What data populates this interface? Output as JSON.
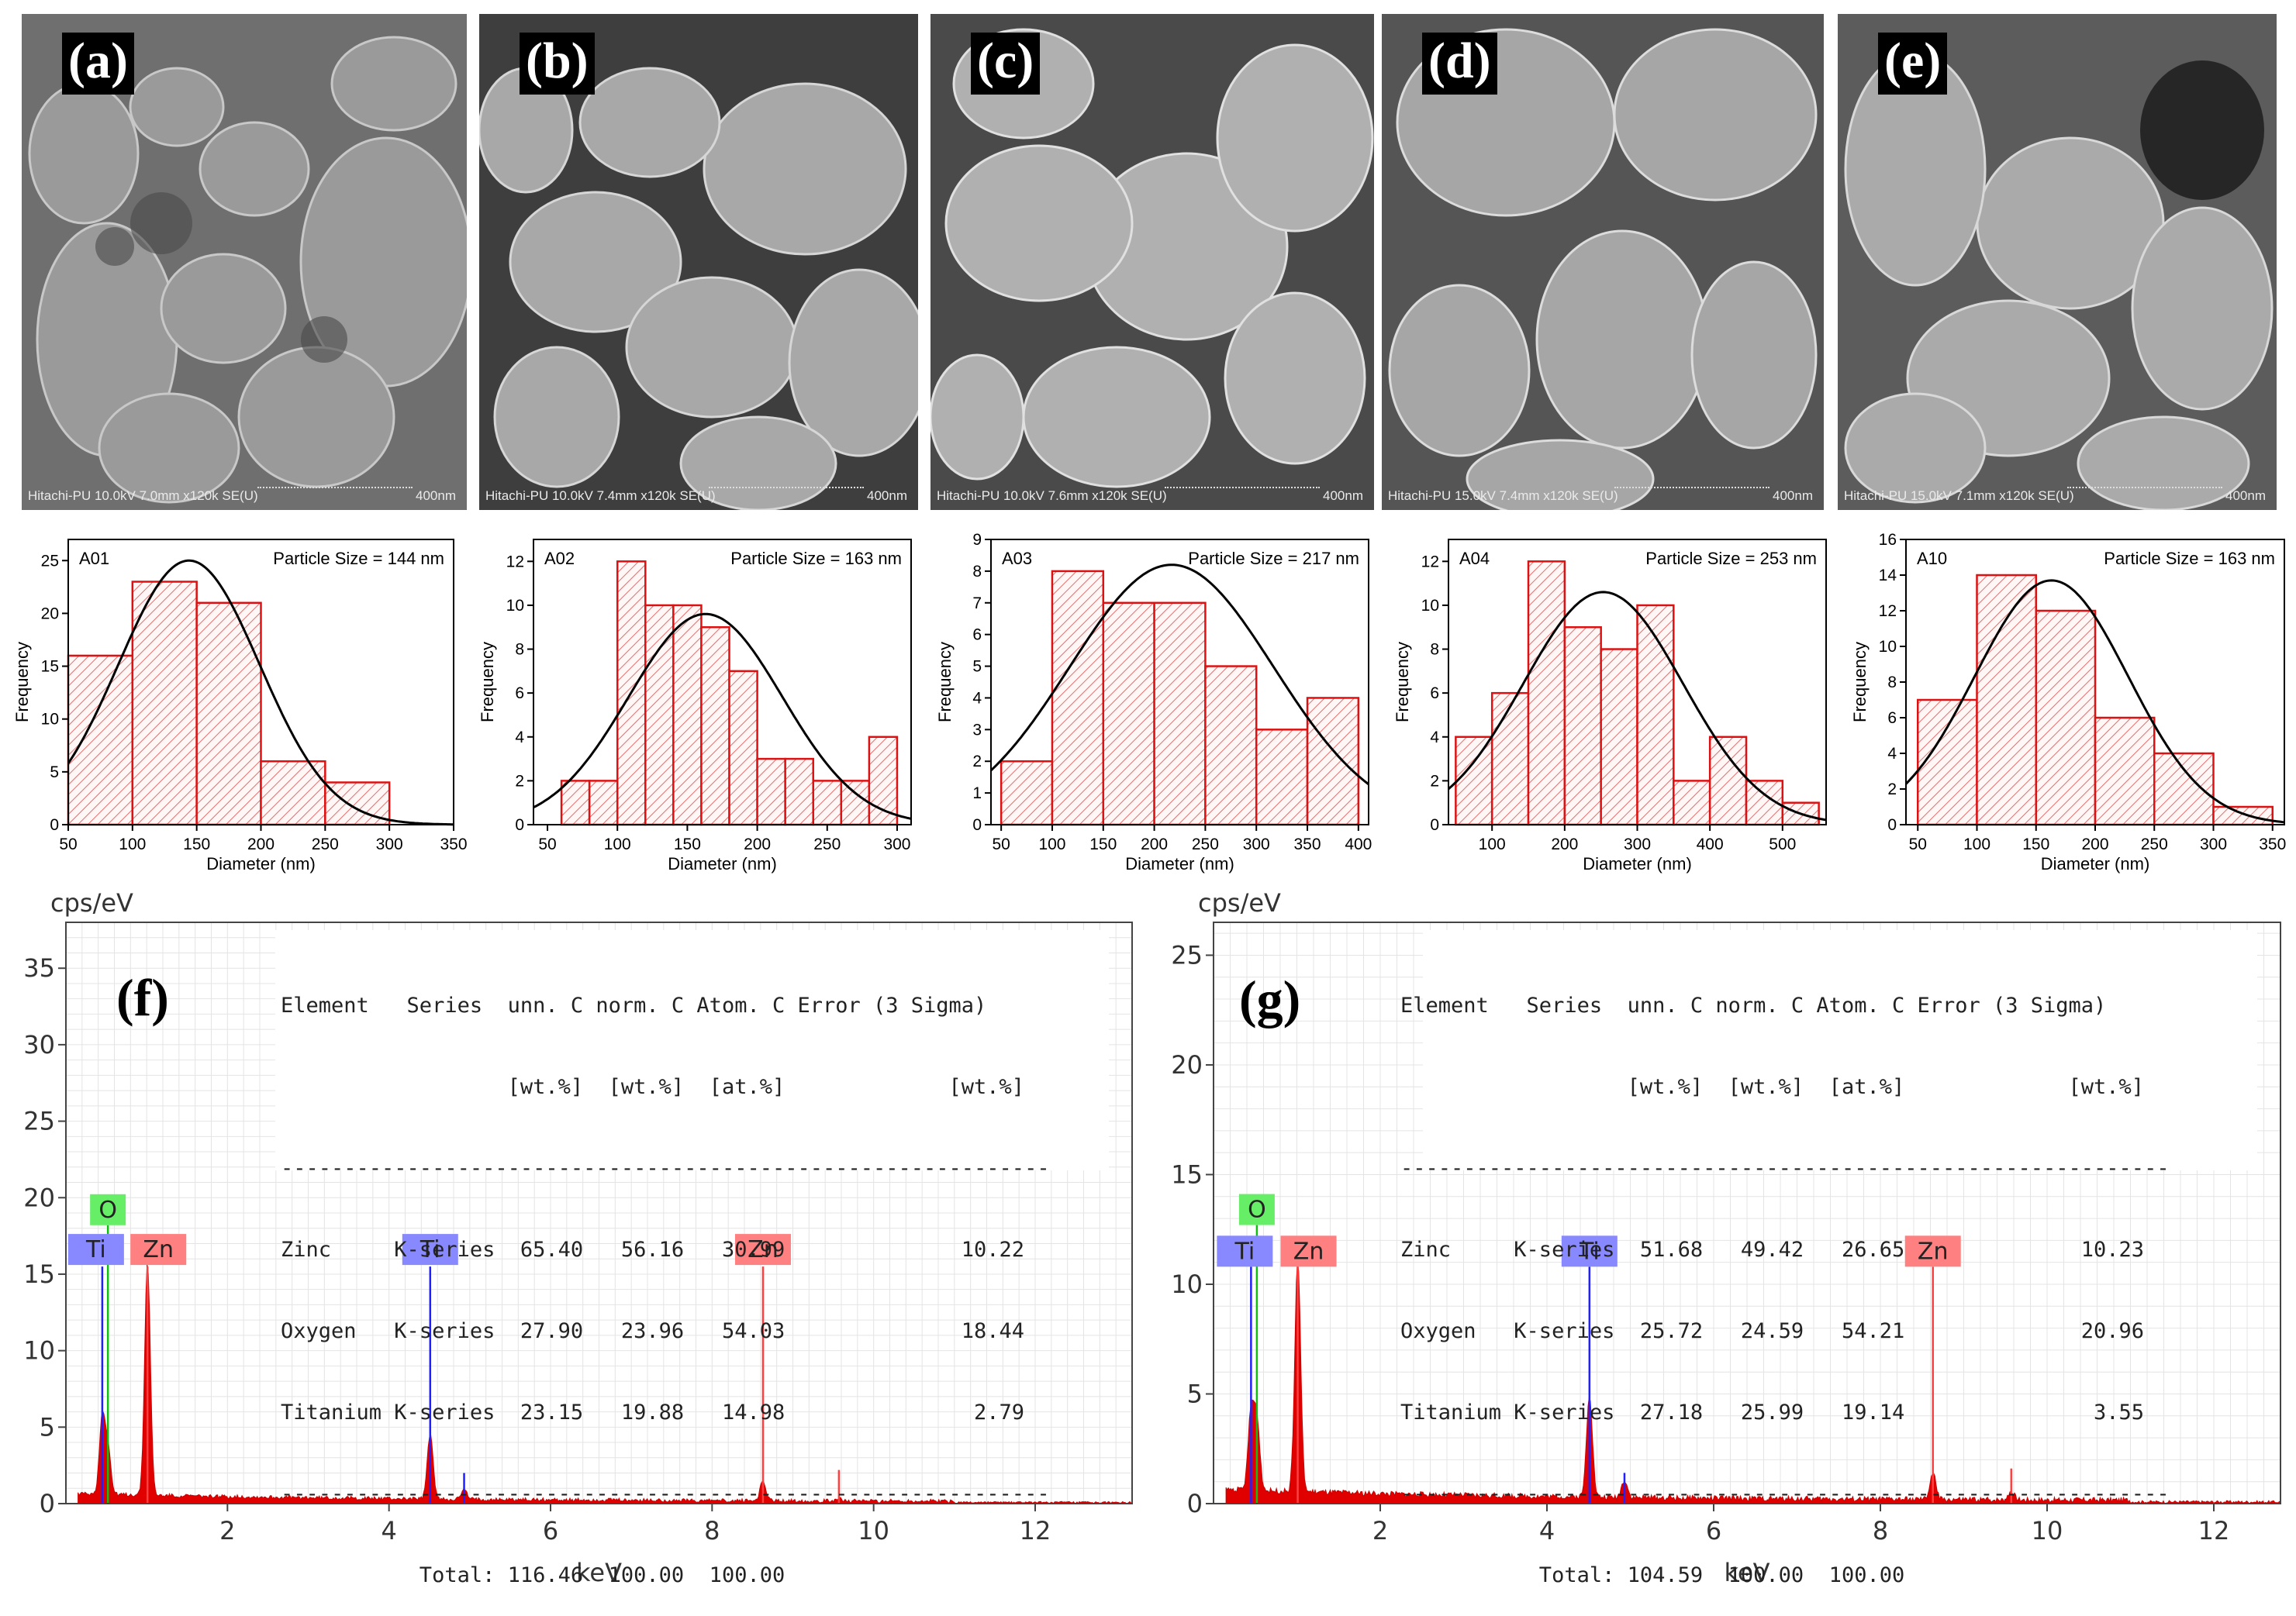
{
  "sem_panels": [
    {
      "label": "(a)",
      "info": "Hitachi-PU 10.0kV 7.0mm x120k SE(U)",
      "scale": "400nm"
    },
    {
      "label": "(b)",
      "info": "Hitachi-PU 10.0kV 7.4mm x120k SE(U)",
      "scale": "400nm"
    },
    {
      "label": "(c)",
      "info": "Hitachi-PU 10.0kV 7.6mm x120k SE(U)",
      "scale": "400nm"
    },
    {
      "label": "(d)",
      "info": "Hitachi-PU 15.0kV 7.4mm x120k SE(U)",
      "scale": "400nm"
    },
    {
      "label": "(e)",
      "info": "Hitachi-PU 15.0kV 7.1mm x120k SE(U)",
      "scale": "400nm"
    }
  ],
  "chart_data": [
    {
      "type": "bar",
      "sample": "A01",
      "title": "Particle Size = 144 nm",
      "xlabel": "Diameter (nm)",
      "ylabel": "Frequency",
      "bins": [
        [
          50,
          100
        ],
        [
          100,
          150
        ],
        [
          150,
          200
        ],
        [
          200,
          250
        ],
        [
          250,
          300
        ]
      ],
      "values": [
        16,
        23,
        21,
        6,
        4
      ],
      "xlim": [
        50,
        350
      ],
      "ylim": [
        0,
        27
      ],
      "xticks": [
        50,
        100,
        150,
        200,
        250,
        300,
        350
      ],
      "yticks": [
        0,
        5,
        10,
        15,
        20,
        25
      ],
      "fit": {
        "mean": 144,
        "sd": 55,
        "peak": 25
      }
    },
    {
      "type": "bar",
      "sample": "A02",
      "title": "Particle Size = 163 nm",
      "xlabel": "Diameter (nm)",
      "ylabel": "Frequency",
      "bins": [
        [
          60,
          80
        ],
        [
          80,
          100
        ],
        [
          100,
          120
        ],
        [
          120,
          140
        ],
        [
          140,
          160
        ],
        [
          160,
          180
        ],
        [
          180,
          200
        ],
        [
          200,
          220
        ],
        [
          220,
          240
        ],
        [
          240,
          260
        ],
        [
          260,
          280
        ],
        [
          280,
          300
        ]
      ],
      "values": [
        2,
        2,
        12,
        10,
        10,
        9,
        7,
        3,
        3,
        2,
        2,
        4
      ],
      "xlim": [
        40,
        310
      ],
      "ylim": [
        0,
        13
      ],
      "xticks": [
        50,
        100,
        150,
        200,
        250,
        300
      ],
      "yticks": [
        0,
        2,
        4,
        6,
        8,
        10,
        12
      ],
      "fit": {
        "mean": 163,
        "sd": 55,
        "peak": 9.6
      }
    },
    {
      "type": "bar",
      "sample": "A03",
      "title": "Particle Size = 217 nm",
      "xlabel": "Diameter (nm)",
      "ylabel": "Frequency",
      "bins": [
        [
          50,
          100
        ],
        [
          100,
          150
        ],
        [
          150,
          200
        ],
        [
          200,
          250
        ],
        [
          250,
          300
        ],
        [
          300,
          350
        ],
        [
          350,
          400
        ]
      ],
      "values": [
        2,
        8,
        7,
        7,
        5,
        3,
        4
      ],
      "xlim": [
        40,
        410
      ],
      "ylim": [
        0,
        9
      ],
      "xticks": [
        50,
        100,
        150,
        200,
        250,
        300,
        350,
        400
      ],
      "yticks": [
        0,
        1,
        2,
        3,
        4,
        5,
        6,
        7,
        8,
        9
      ],
      "fit": {
        "mean": 217,
        "sd": 100,
        "peak": 8.2
      }
    },
    {
      "type": "bar",
      "sample": "A04",
      "title": "Particle Size = 253 nm",
      "xlabel": "Diameter (nm)",
      "ylabel": "Frequency",
      "bins": [
        [
          50,
          100
        ],
        [
          100,
          150
        ],
        [
          150,
          200
        ],
        [
          200,
          250
        ],
        [
          250,
          300
        ],
        [
          300,
          350
        ],
        [
          350,
          400
        ],
        [
          400,
          450
        ],
        [
          450,
          500
        ],
        [
          500,
          550
        ]
      ],
      "values": [
        4,
        6,
        12,
        9,
        8,
        10,
        2,
        4,
        2,
        1
      ],
      "xlim": [
        40,
        560
      ],
      "ylim": [
        0,
        13
      ],
      "xticks": [
        100,
        200,
        300,
        400,
        500
      ],
      "yticks": [
        0,
        2,
        4,
        6,
        8,
        10,
        12
      ],
      "fit": {
        "mean": 253,
        "sd": 110,
        "peak": 10.6
      }
    },
    {
      "type": "bar",
      "sample": "A10",
      "title": "Particle Size = 163 nm",
      "xlabel": "Diameter (nm)",
      "ylabel": "Frequency",
      "bins": [
        [
          50,
          100
        ],
        [
          100,
          150
        ],
        [
          150,
          200
        ],
        [
          200,
          250
        ],
        [
          250,
          300
        ],
        [
          300,
          350
        ]
      ],
      "values": [
        7,
        14,
        12,
        6,
        4,
        1
      ],
      "xlim": [
        40,
        360
      ],
      "ylim": [
        0,
        16
      ],
      "xticks": [
        50,
        100,
        150,
        200,
        250,
        300,
        350
      ],
      "yticks": [
        0,
        2,
        4,
        6,
        8,
        10,
        12,
        14,
        16
      ],
      "fit": {
        "mean": 163,
        "sd": 65,
        "peak": 13.7
      }
    },
    {
      "type": "line",
      "panel": "(f)",
      "ylabel": "cps/eV",
      "xlabel": "keV",
      "xlim": [
        0,
        13.2
      ],
      "ylim": [
        0,
        38
      ],
      "xticks": [
        2,
        4,
        6,
        8,
        10,
        12
      ],
      "yticks": [
        0,
        5,
        10,
        15,
        20,
        25,
        30,
        35
      ],
      "peaks": [
        {
          "kev": 0.45,
          "height": 5,
          "color": "#1010e0",
          "label": "Ti"
        },
        {
          "kev": 0.52,
          "height": 3,
          "color": "#e02020",
          "label": "O"
        },
        {
          "kev": 1.01,
          "height": 15.2,
          "color": "#e00000",
          "label": "Zn"
        },
        {
          "kev": 4.51,
          "height": 4.3,
          "color": "#e00000",
          "label": "Ti"
        },
        {
          "kev": 4.93,
          "height": 0.6,
          "color": "#e00000",
          "label": ""
        },
        {
          "kev": 8.63,
          "height": 1.3,
          "color": "#e00000",
          "label": "Zn"
        },
        {
          "kev": 9.57,
          "height": 0.2,
          "color": "#e00000",
          "label": ""
        }
      ],
      "lines": [
        {
          "kev": 0.45,
          "top": 15.5,
          "color": "#2020ff"
        },
        {
          "kev": 0.52,
          "top": 18.2,
          "color": "#10c010"
        },
        {
          "kev": 1.01,
          "top": 15.5,
          "color": "#ff4040"
        },
        {
          "kev": 4.51,
          "top": 15.5,
          "color": "#2020ff"
        },
        {
          "kev": 4.93,
          "top": 2.0,
          "color": "#2020ff"
        },
        {
          "kev": 8.63,
          "top": 15.5,
          "color": "#ff4040"
        },
        {
          "kev": 9.57,
          "top": 2.2,
          "color": "#ff4040"
        }
      ],
      "markers": [
        {
          "text": "O",
          "kev": 0.52,
          "y": 18.2,
          "color": "#66ee66"
        },
        {
          "text": "Ti",
          "kev": 0.45,
          "y": 15.6,
          "color": "#8888ff"
        },
        {
          "text": "Zn",
          "kev": 1.01,
          "y": 15.6,
          "color": "#ff8080"
        },
        {
          "text": "Ti",
          "kev": 4.51,
          "y": 15.6,
          "color": "#8888ff"
        },
        {
          "text": "Zn",
          "kev": 8.63,
          "y": 15.6,
          "color": "#ff8080"
        }
      ]
    },
    {
      "type": "line",
      "panel": "(g)",
      "ylabel": "cps/eV",
      "xlabel": "keV",
      "xlim": [
        0,
        12.8
      ],
      "ylim": [
        0,
        26.5
      ],
      "xticks": [
        2,
        4,
        6,
        8,
        10,
        12
      ],
      "yticks": [
        0,
        5,
        10,
        15,
        20,
        25
      ],
      "peaks": [
        {
          "kev": 0.45,
          "height": 3.5,
          "color": "#1010e0",
          "label": "Ti"
        },
        {
          "kev": 0.52,
          "height": 3.2,
          "color": "#e02020",
          "label": "O"
        },
        {
          "kev": 1.01,
          "height": 10.6,
          "color": "#e00000",
          "label": "Zn"
        },
        {
          "kev": 4.51,
          "height": 4.7,
          "color": "#e00000",
          "label": "Ti"
        },
        {
          "kev": 4.93,
          "height": 0.8,
          "color": "#e00000",
          "label": ""
        },
        {
          "kev": 8.63,
          "height": 1.2,
          "color": "#e00000",
          "label": "Zn"
        },
        {
          "kev": 9.57,
          "height": 0.4,
          "color": "#e00000",
          "label": ""
        }
      ],
      "lines": [
        {
          "kev": 0.45,
          "top": 10.8,
          "color": "#2020ff"
        },
        {
          "kev": 0.52,
          "top": 12.7,
          "color": "#10c010"
        },
        {
          "kev": 1.01,
          "top": 10.8,
          "color": "#ff4040"
        },
        {
          "kev": 4.51,
          "top": 10.8,
          "color": "#2020ff"
        },
        {
          "kev": 4.93,
          "top": 1.4,
          "color": "#2020ff"
        },
        {
          "kev": 8.63,
          "top": 10.8,
          "color": "#ff4040"
        },
        {
          "kev": 9.57,
          "top": 1.6,
          "color": "#ff4040"
        }
      ],
      "markers": [
        {
          "text": "O",
          "kev": 0.52,
          "y": 12.7,
          "color": "#66ee66"
        },
        {
          "text": "Ti",
          "kev": 0.45,
          "y": 10.8,
          "color": "#8888ff"
        },
        {
          "text": "Zn",
          "kev": 1.01,
          "y": 10.8,
          "color": "#ff8080"
        },
        {
          "text": "Ti",
          "kev": 4.51,
          "y": 10.8,
          "color": "#8888ff"
        },
        {
          "text": "Zn",
          "kev": 8.63,
          "y": 10.8,
          "color": "#ff8080"
        }
      ]
    }
  ],
  "eds_tables": [
    {
      "panel": "(f)",
      "header1": "Element   Series  unn. C norm. C Atom. C Error (3 Sigma)",
      "header2": "                  [wt.%]  [wt.%]  [at.%]             [wt.%]",
      "rule": "-------------------------------------------------------------",
      "rows": [
        "Zinc     K-series  65.40   56.16   30.99              10.22",
        "Oxygen   K-series  27.90   23.96   54.03              18.44",
        "Titanium K-series  23.15   19.88   14.98               2.79"
      ],
      "total": "           Total: 116.46  100.00  100.00"
    },
    {
      "panel": "(g)",
      "header1": "Element   Series  unn. C norm. C Atom. C Error (3 Sigma)",
      "header2": "                  [wt.%]  [wt.%]  [at.%]             [wt.%]",
      "rule": "-------------------------------------------------------------",
      "rows": [
        "Zinc     K-series  51.68   49.42   26.65              10.23",
        "Oxygen   K-series  25.72   24.59   54.21              20.96",
        "Titanium K-series  27.18   25.99   19.14               3.55"
      ],
      "total": "           Total: 104.59  100.00  100.00"
    }
  ],
  "eds_labels": {
    "f": "(f)",
    "g": "(g)"
  }
}
